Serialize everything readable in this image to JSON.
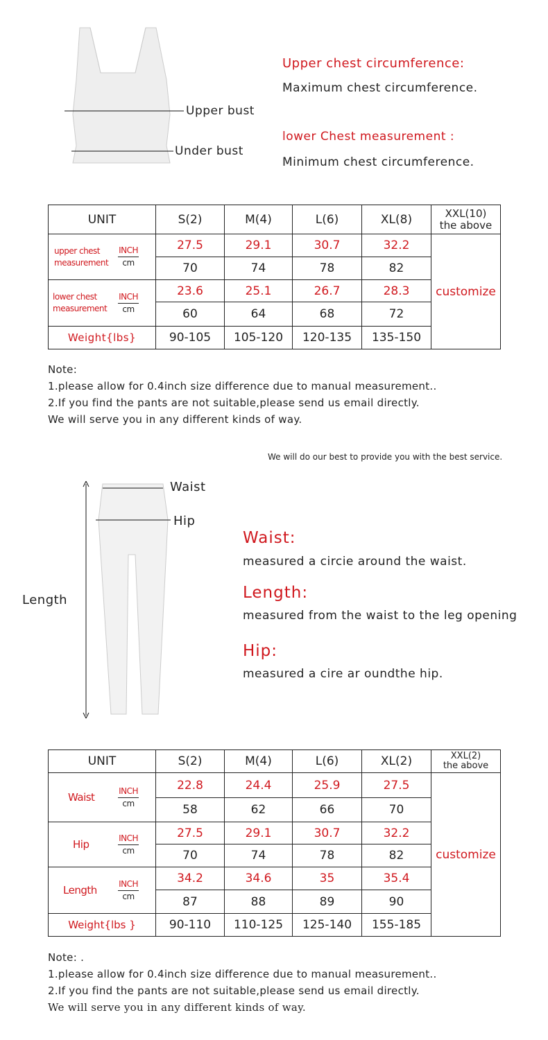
{
  "bra": {
    "label_upper": "Upper bust",
    "label_under": "Under bust",
    "upper_title": "Upper chest circumference:",
    "upper_desc": "Maximum chest circumference.",
    "lower_title": "lower Chest measurement :",
    "lower_desc": "Minimum chest circumference.",
    "table": {
      "headers": [
        "UNIT",
        "S(2)",
        "M(4)",
        "L(6)",
        "XL(8)"
      ],
      "last_header": [
        "XXL(10)",
        "the above"
      ],
      "rows": [
        {
          "label": [
            "upper chest",
            "measurement"
          ],
          "inch": [
            "27.5",
            "29.1",
            "30.7",
            "32.2"
          ],
          "cm": [
            "70",
            "74",
            "78",
            "82"
          ]
        },
        {
          "label": [
            "lower chest",
            "measurement"
          ],
          "inch": [
            "23.6",
            "25.1",
            "26.7",
            "28.3"
          ],
          "cm": [
            "60",
            "64",
            "68",
            "72"
          ]
        }
      ],
      "unit_inch": "INCH",
      "unit_cm": "cm",
      "weight_label": "Weight{lbs}",
      "weights": [
        "90-105",
        "105-120",
        "120-135",
        "135-150"
      ],
      "customize": "customize"
    },
    "notes": [
      "Note:",
      "1.please allow for 0.4inch size difference due to manual measurement..",
      "2.If you find the pants are not suitable,please send us email directly.",
      "We will serve you in any different kinds of way."
    ]
  },
  "service": "We will do our best to provide you with the best service.",
  "pants": {
    "label_waist": "Waist",
    "label_hip": "Hip",
    "label_length": "Length",
    "waist_title": "Waist:",
    "waist_desc": "measured a circie around the waist.",
    "length_title": "Length:",
    "length_desc": "measured from the waist to the leg opening",
    "hip_title": "Hip:",
    "hip_desc": "measured a cire ar oundthe hip.",
    "table": {
      "headers": [
        "UNIT",
        "S(2)",
        "M(4)",
        "L(6)",
        "XL(2)"
      ],
      "last_header": [
        "XXL(2)",
        "the above"
      ],
      "rows": [
        {
          "label": "Waist",
          "inch": [
            "22.8",
            "24.4",
            "25.9",
            "27.5"
          ],
          "cm": [
            "58",
            "62",
            "66",
            "70"
          ]
        },
        {
          "label": "Hip",
          "inch": [
            "27.5",
            "29.1",
            "30.7",
            "32.2"
          ],
          "cm": [
            "70",
            "74",
            "78",
            "82"
          ]
        },
        {
          "label": "Length",
          "inch": [
            "34.2",
            "34.6",
            "35",
            "35.4"
          ],
          "cm": [
            "87",
            "88",
            "89",
            "90"
          ]
        }
      ],
      "unit_inch": "INCH",
      "unit_cm": "cm",
      "weight_label": "Weight{lbs }",
      "weights": [
        "90-110",
        "110-125",
        "125-140",
        "155-185"
      ],
      "customize": "customize"
    },
    "notes": [
      "Note: .",
      "1.please allow for 0.4inch size difference due to manual measurement..",
      "2.If you find the pants are not suitable,please send us email directly.",
      "We will serve you in any different kinds of way."
    ]
  }
}
